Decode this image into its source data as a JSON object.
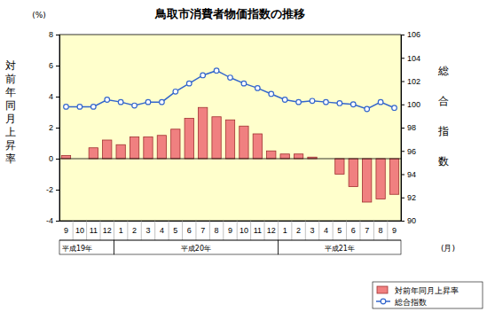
{
  "chart_data": {
    "type": "bar",
    "title": "鳥取市消費者物価指数の推移",
    "y_label": "対前年同月上昇率",
    "y_unit": "(%)",
    "y2_label": "総合指数",
    "x_label": "(月)",
    "categories": [
      "9",
      "10",
      "11",
      "12",
      "1",
      "2",
      "3",
      "4",
      "5",
      "6",
      "7",
      "8",
      "9",
      "10",
      "11",
      "12",
      "1",
      "2",
      "3",
      "4",
      "5",
      "6",
      "7",
      "8",
      "9"
    ],
    "x_groups": [
      "平成19年",
      "平成20年",
      "平成21年"
    ],
    "ylim": [
      -4,
      8
    ],
    "yticks": [
      -4,
      -2,
      0,
      2,
      4,
      6,
      8
    ],
    "y2lim": [
      90,
      106
    ],
    "y2ticks": [
      90,
      92,
      94,
      96,
      98,
      100,
      102,
      104,
      106
    ],
    "legend": "bottom-right",
    "series": [
      {
        "name": "対前年同月上昇率",
        "type": "bar",
        "color": "#f08080",
        "values": [
          0.2,
          0.0,
          0.7,
          1.2,
          0.9,
          1.4,
          1.4,
          1.5,
          1.9,
          2.6,
          3.3,
          2.7,
          2.5,
          2.1,
          1.6,
          0.5,
          0.3,
          0.3,
          0.1,
          0.0,
          -1.0,
          -1.8,
          -2.8,
          -2.6,
          -2.3
        ]
      },
      {
        "name": "総合指数",
        "type": "line",
        "axis": "y2",
        "color": "#3366cc",
        "marker": "circle",
        "values": [
          99.8,
          99.8,
          99.8,
          100.4,
          100.2,
          99.9,
          100.2,
          100.2,
          101.1,
          101.8,
          102.5,
          102.9,
          102.3,
          101.8,
          101.4,
          100.9,
          100.4,
          100.2,
          100.3,
          100.2,
          100.1,
          100.0,
          99.6,
          100.2,
          99.7
        ]
      }
    ]
  }
}
